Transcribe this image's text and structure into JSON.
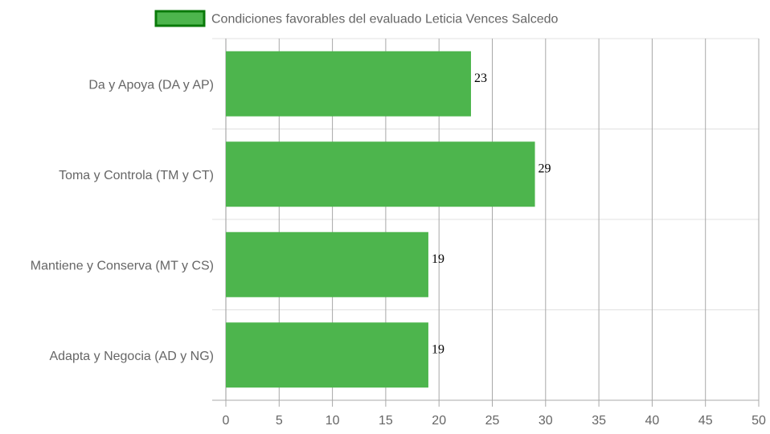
{
  "chart_data": {
    "type": "bar",
    "orientation": "horizontal",
    "categories": [
      "Da y Apoya (DA y AP)",
      "Toma y Controla (TM y CT)",
      "Mantiene y Conserva (MT y CS)",
      "Adapta y Negocia (AD y NG)"
    ],
    "series": [
      {
        "name": "Condiciones favorables del evaluado Leticia Vences Salcedo",
        "values": [
          23,
          29,
          19,
          19
        ]
      }
    ],
    "xlim": [
      0,
      50
    ],
    "x_ticks": [
      0,
      5,
      10,
      15,
      20,
      25,
      30,
      35,
      40,
      45,
      50
    ],
    "grid": true,
    "legend_position": "top",
    "bar_color": "#4db54d",
    "bar_border_color": "#0a7a0a",
    "data_labels": true
  }
}
